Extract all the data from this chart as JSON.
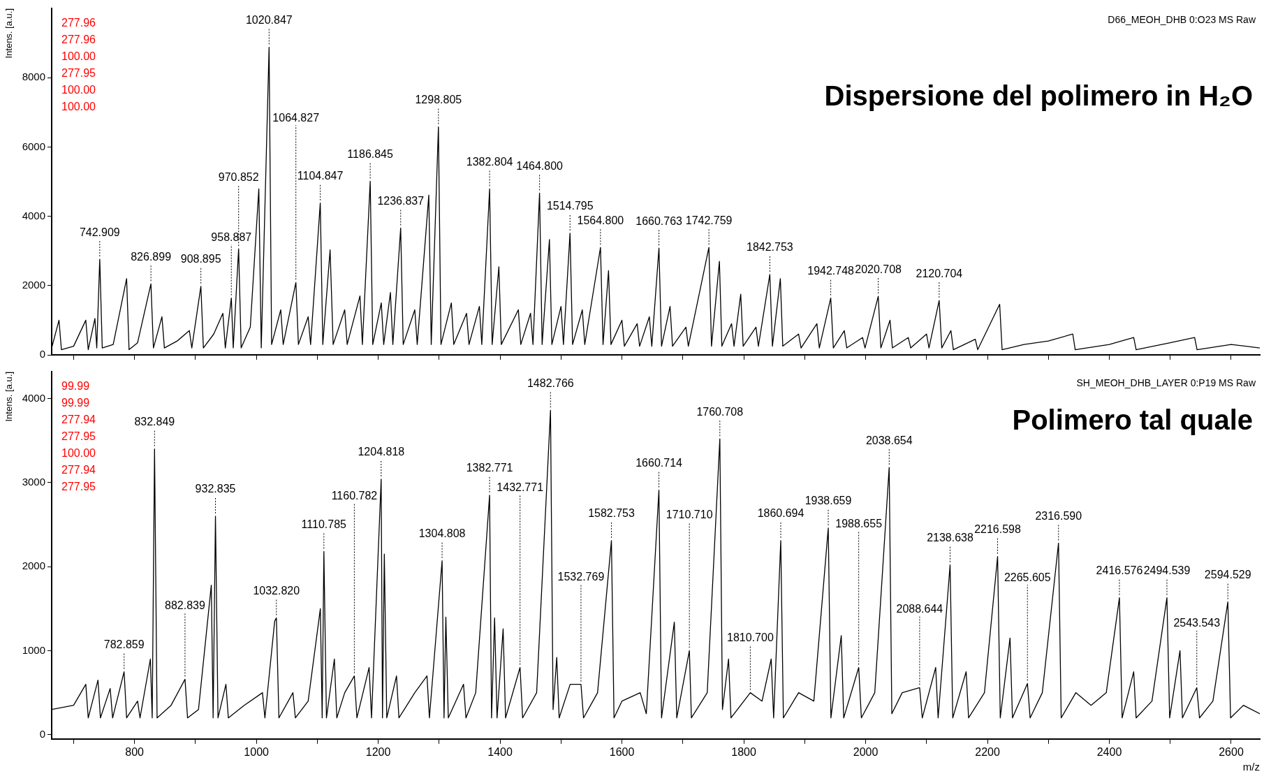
{
  "chart_data": [
    {
      "type": "line",
      "title": "Dispersione del polimero in H₂O",
      "subtitle": "D66_MEOH_DHB 0:O23 MS Raw",
      "ylabel": "Intens. [a.u.]",
      "xlim": [
        664,
        2647
      ],
      "ylim": [
        0,
        10000
      ],
      "xticks": [
        {
          "value": 700,
          "label": null
        },
        800,
        {
          "value": 900,
          "label": null
        },
        1000,
        {
          "value": 1100,
          "label": null
        },
        1200,
        {
          "value": 1300,
          "label": null
        },
        1400,
        {
          "value": 1500,
          "label": null
        },
        1600,
        {
          "value": 1700,
          "label": null
        },
        1800,
        {
          "value": 1900,
          "label": null
        },
        2000,
        {
          "value": 2100,
          "label": null
        },
        2200,
        {
          "value": 2300,
          "label": null
        },
        2400,
        {
          "value": 2500,
          "label": null
        },
        2600
      ],
      "yticks": [
        0,
        2000,
        4000,
        6000,
        8000
      ],
      "tick_labels": "y",
      "grid": false,
      "legend": false,
      "marker": "none",
      "line_style": "solid",
      "series": [
        {
          "color": "#000000",
          "x": [
            664,
            676,
            680,
            700,
            720,
            724,
            735,
            738,
            742.909,
            747,
            765,
            787,
            791,
            805,
            826.899,
            831,
            845,
            849,
            870,
            890,
            894,
            908.895,
            913,
            930,
            945,
            949,
            958.887,
            962,
            970.852,
            975,
            990,
            1004,
            1008,
            1020.847,
            1025,
            1040,
            1044,
            1064.827,
            1069,
            1085,
            1089,
            1104.847,
            1109,
            1121,
            1126,
            1145,
            1149,
            1170,
            1174,
            1186.845,
            1191,
            1205,
            1209,
            1220,
            1224,
            1236.837,
            1241,
            1260,
            1264,
            1283,
            1287,
            1298.805,
            1303,
            1320,
            1324,
            1345,
            1349,
            1366,
            1370,
            1382.804,
            1387,
            1398,
            1402,
            1430,
            1434,
            1450,
            1454,
            1464.8,
            1469,
            1481,
            1485,
            1500,
            1504,
            1514.795,
            1519,
            1535,
            1539,
            1564.8,
            1569,
            1578,
            1582,
            1600,
            1604,
            1625,
            1629,
            1645,
            1649,
            1660.763,
            1665,
            1679,
            1683,
            1705,
            1709,
            1742.759,
            1747,
            1760,
            1764,
            1780,
            1784,
            1795,
            1799,
            1820,
            1824,
            1842.753,
            1847,
            1860,
            1864,
            1890,
            1894,
            1920,
            1924,
            1942.748,
            1947,
            1965,
            1969,
            1995,
            1999,
            2020.708,
            2025,
            2040,
            2044,
            2070,
            2074,
            2100,
            2104,
            2120.704,
            2125,
            2140,
            2144,
            2180,
            2184,
            2220,
            2224,
            2260,
            2300,
            2340,
            2344,
            2400,
            2440,
            2444,
            2500,
            2540,
            2544,
            2600,
            2647
          ],
          "values": [
            200,
            1000,
            150,
            250,
            1000,
            150,
            1050,
            200,
            2760,
            200,
            300,
            2200,
            150,
            350,
            2050,
            200,
            1100,
            200,
            400,
            700,
            200,
            1980,
            200,
            600,
            1200,
            200,
            1640,
            200,
            3060,
            200,
            800,
            4790,
            200,
            8880,
            300,
            1300,
            300,
            2090,
            300,
            1100,
            300,
            4380,
            300,
            3030,
            300,
            1300,
            300,
            1700,
            300,
            5010,
            300,
            1500,
            300,
            1800,
            300,
            3660,
            300,
            1300,
            300,
            4610,
            300,
            6580,
            300,
            1500,
            300,
            1200,
            300,
            1400,
            300,
            4790,
            300,
            2540,
            300,
            1300,
            300,
            1200,
            300,
            4670,
            300,
            3330,
            300,
            1400,
            300,
            3510,
            300,
            1300,
            300,
            3100,
            300,
            2430,
            300,
            1000,
            250,
            900,
            250,
            1100,
            250,
            3080,
            250,
            1400,
            250,
            800,
            250,
            3100,
            250,
            2700,
            250,
            900,
            250,
            1750,
            250,
            800,
            250,
            2320,
            250,
            2200,
            250,
            600,
            200,
            900,
            200,
            1640,
            200,
            700,
            200,
            500,
            200,
            1690,
            200,
            1000,
            200,
            500,
            200,
            600,
            200,
            1570,
            200,
            700,
            150,
            450,
            150,
            1460,
            150,
            300,
            400,
            600,
            150,
            300,
            500,
            150,
            350,
            500,
            150,
            300,
            200
          ]
        }
      ],
      "annotations": [
        {
          "text": "742.909",
          "x": 742.909,
          "y": 2760
        },
        {
          "text": "826.899",
          "x": 826.899,
          "y": 2050
        },
        {
          "text": "908.895",
          "x": 908.895,
          "y": 1980
        },
        {
          "text": "958.887",
          "x": 958.887,
          "y": 1640
        },
        {
          "text": "970.852",
          "x": 970.852,
          "y": 3060
        },
        {
          "text": "1020.847",
          "x": 1020.847,
          "y": 8880
        },
        {
          "text": "1064.827",
          "x": 1064.827,
          "y": 2090
        },
        {
          "text": "1104.847",
          "x": 1104.847,
          "y": 4380
        },
        {
          "text": "1186.845",
          "x": 1186.845,
          "y": 5010
        },
        {
          "text": "1236.837",
          "x": 1236.837,
          "y": 3660
        },
        {
          "text": "1298.805",
          "x": 1298.805,
          "y": 6580
        },
        {
          "text": "1382.804",
          "x": 1382.804,
          "y": 4790
        },
        {
          "text": "1464.800",
          "x": 1464.8,
          "y": 4670
        },
        {
          "text": "1514.795",
          "x": 1514.795,
          "y": 3510
        },
        {
          "text": "1564.800",
          "x": 1564.8,
          "y": 3100
        },
        {
          "text": "1660.763",
          "x": 1660.763,
          "y": 3080
        },
        {
          "text": "1742.759",
          "x": 1742.759,
          "y": 3100
        },
        {
          "text": "1842.753",
          "x": 1842.753,
          "y": 2320
        },
        {
          "text": "1942.748",
          "x": 1942.748,
          "y": 1640
        },
        {
          "text": "2020.708",
          "x": 2020.708,
          "y": 1690
        },
        {
          "text": "2120.704",
          "x": 2120.704,
          "y": 1570
        },
        "277.96",
        "277.96",
        "100.00",
        "277.95",
        "100.00",
        "100.00"
      ]
    },
    {
      "type": "line",
      "title": "Polimero tal quale",
      "subtitle": "SH_MEOH_DHB_LAYER 0:P19 MS Raw",
      "xlabel": "m/z",
      "ylabel": "Intens. [a.u.]",
      "xlim": [
        664,
        2647
      ],
      "ylim": [
        -50,
        4320
      ],
      "xticks": [
        {
          "value": 700,
          "label": null
        },
        800,
        {
          "value": 900,
          "label": null
        },
        1000,
        {
          "value": 1100,
          "label": null
        },
        1200,
        {
          "value": 1300,
          "label": null
        },
        1400,
        {
          "value": 1500,
          "label": null
        },
        1600,
        {
          "value": 1700,
          "label": null
        },
        1800,
        {
          "value": 1900,
          "label": null
        },
        2000,
        {
          "value": 2100,
          "label": null
        },
        2200,
        {
          "value": 2300,
          "label": null
        },
        2400,
        {
          "value": 2500,
          "label": null
        },
        2600
      ],
      "yticks": [
        0,
        1000,
        2000,
        3000,
        4000
      ],
      "grid": false,
      "legend": false,
      "marker": "none",
      "line_style": "solid",
      "series": [
        {
          "color": "#000000",
          "x": [
            664,
            700,
            720,
            724,
            740,
            744,
            760,
            764,
            782.859,
            787,
            805,
            809,
            826,
            829,
            832.849,
            837,
            860,
            882.839,
            887,
            905,
            926,
            929,
            932.835,
            937,
            950,
            954,
            980,
            1010,
            1014,
            1030,
            1032.82,
            1037,
            1060,
            1064,
            1085,
            1105,
            1108,
            1110.785,
            1115,
            1128,
            1132,
            1145,
            1160.782,
            1165,
            1185,
            1189,
            1204.818,
            1207,
            1210,
            1214,
            1230,
            1234,
            1260,
            1280,
            1284,
            1304.808,
            1308,
            1311,
            1315,
            1340,
            1344,
            1360,
            1382.771,
            1386,
            1391,
            1395,
            1405,
            1409,
            1432.771,
            1437,
            1460,
            1482.766,
            1487,
            1493,
            1497,
            1515,
            1532.769,
            1537,
            1560,
            1582.753,
            1587,
            1600,
            1630,
            1640,
            1660.714,
            1665,
            1686,
            1690,
            1710.71,
            1714,
            1740,
            1760.708,
            1765,
            1775,
            1779,
            1810.7,
            1830,
            1845,
            1849,
            1860.694,
            1865,
            1890,
            1915,
            1938.659,
            1943,
            1960,
            1964,
            1988.655,
            1993,
            2015,
            2038.654,
            2043,
            2060,
            2088.644,
            2093,
            2115,
            2119,
            2138.638,
            2143,
            2165,
            2169,
            2195,
            2216.598,
            2221,
            2237,
            2241,
            2265.605,
            2270,
            2290,
            2316.59,
            2321,
            2345,
            2370,
            2395,
            2416.576,
            2421,
            2440,
            2444,
            2470,
            2494.539,
            2499,
            2516,
            2520,
            2543.543,
            2548,
            2570,
            2594.529,
            2599,
            2620,
            2647
          ],
          "values": [
            300,
            350,
            600,
            200,
            650,
            200,
            550,
            200,
            750,
            200,
            400,
            200,
            900,
            200,
            3400,
            200,
            350,
            660,
            200,
            300,
            1780,
            200,
            2600,
            200,
            600,
            200,
            350,
            500,
            200,
            1350,
            1390,
            200,
            500,
            200,
            400,
            1500,
            200,
            2180,
            200,
            900,
            200,
            500,
            700,
            200,
            800,
            200,
            3040,
            200,
            2150,
            200,
            700,
            200,
            500,
            700,
            200,
            2070,
            200,
            1400,
            200,
            600,
            200,
            500,
            2850,
            200,
            1390,
            200,
            1260,
            200,
            800,
            200,
            500,
            3860,
            300,
            920,
            200,
            600,
            600,
            200,
            500,
            2310,
            200,
            400,
            500,
            250,
            2910,
            200,
            1340,
            200,
            1000,
            200,
            500,
            3520,
            300,
            900,
            200,
            500,
            400,
            900,
            200,
            2310,
            200,
            500,
            400,
            2460,
            200,
            1180,
            200,
            800,
            200,
            500,
            3180,
            250,
            500,
            560,
            200,
            800,
            200,
            2020,
            200,
            750,
            200,
            500,
            2120,
            200,
            1150,
            200,
            610,
            200,
            500,
            2280,
            200,
            500,
            350,
            500,
            1630,
            200,
            750,
            200,
            400,
            1630,
            200,
            1000,
            200,
            560,
            200,
            400,
            1580,
            200,
            350,
            250
          ]
        }
      ],
      "annotations": [
        {
          "text": "782.859",
          "x": 782.859,
          "y": 750
        },
        {
          "text": "832.849",
          "x": 832.849,
          "y": 3400
        },
        {
          "text": "882.839",
          "x": 882.839,
          "y": 660
        },
        {
          "text": "932.835",
          "x": 932.835,
          "y": 2600
        },
        {
          "text": "1032.820",
          "x": 1032.82,
          "y": 1390
        },
        {
          "text": "1110.785",
          "x": 1110.785,
          "y": 2180
        },
        {
          "text": "1160.782",
          "x": 1160.782,
          "y": 700
        },
        {
          "text": "1204.818",
          "x": 1204.818,
          "y": 3040
        },
        {
          "text": "1304.808",
          "x": 1304.808,
          "y": 2070
        },
        {
          "text": "1382.771",
          "x": 1382.771,
          "y": 2850
        },
        {
          "text": "1432.771",
          "x": 1432.771,
          "y": 800
        },
        {
          "text": "1482.766",
          "x": 1482.766,
          "y": 3860
        },
        {
          "text": "1532.769",
          "x": 1532.769,
          "y": 600
        },
        {
          "text": "1582.753",
          "x": 1582.753,
          "y": 2310
        },
        {
          "text": "1660.714",
          "x": 1660.714,
          "y": 2910
        },
        {
          "text": "1710.710",
          "x": 1710.71,
          "y": 1000
        },
        {
          "text": "1760.708",
          "x": 1760.708,
          "y": 3520
        },
        {
          "text": "1810.700",
          "x": 1810.7,
          "y": 500
        },
        {
          "text": "1860.694",
          "x": 1860.694,
          "y": 2310
        },
        {
          "text": "1938.659",
          "x": 1938.659,
          "y": 2460
        },
        {
          "text": "1988.655",
          "x": 1988.655,
          "y": 800
        },
        {
          "text": "2038.654",
          "x": 2038.654,
          "y": 3180
        },
        {
          "text": "2088.644",
          "x": 2088.644,
          "y": 560
        },
        {
          "text": "2138.638",
          "x": 2138.638,
          "y": 2020
        },
        {
          "text": "2216.598",
          "x": 2216.598,
          "y": 2120
        },
        {
          "text": "2265.605",
          "x": 2265.605,
          "y": 610
        },
        {
          "text": "2316.590",
          "x": 2316.59,
          "y": 2280
        },
        {
          "text": "2416.576",
          "x": 2416.576,
          "y": 1630
        },
        {
          "text": "2494.539",
          "x": 2494.539,
          "y": 1630
        },
        {
          "text": "2543.543",
          "x": 2543.543,
          "y": 560
        },
        {
          "text": "2594.529",
          "x": 2594.529,
          "y": 1580
        },
        "99.99",
        "99.99",
        "277.94",
        "277.95",
        "100.00",
        "277.94",
        "277.95"
      ]
    }
  ]
}
